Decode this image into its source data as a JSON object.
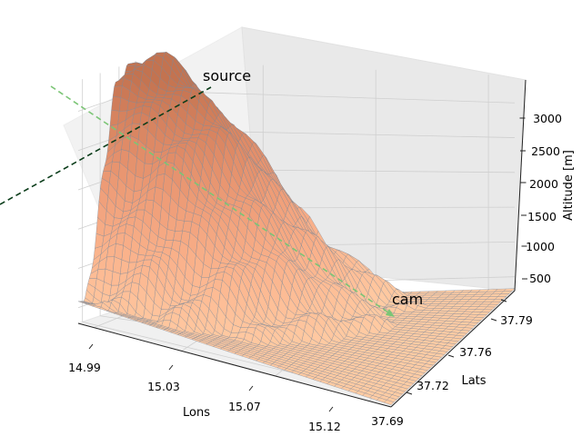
{
  "chart_data": {
    "type": "surface3d",
    "title": "",
    "xlabel": "Lons",
    "ylabel": "Lats",
    "zlabel": "Altitude [m]",
    "x_ticks": [
      "14.99",
      "15.03",
      "15.07",
      "15.12"
    ],
    "y_ticks": [
      "37.69",
      "37.72",
      "37.76",
      "37.79"
    ],
    "z_ticks": [
      "500",
      "1000",
      "1500",
      "2000",
      "2500",
      "3000"
    ],
    "xlim": [
      14.98,
      15.13
    ],
    "ylim": [
      37.68,
      37.8
    ],
    "zlim": [
      300,
      3330
    ],
    "grid": true,
    "surface": {
      "colormap": "copper-like",
      "edge_color": "#7f8a96",
      "peak": {
        "lon": 14.995,
        "lat": 37.75,
        "altitude": 3300
      }
    },
    "annotations": [
      {
        "text": "source",
        "lon": 14.99,
        "lat": 37.76,
        "altitude": 3300
      },
      {
        "text": "cam",
        "lon": 15.1,
        "lat": 37.78,
        "altitude": 300
      }
    ],
    "lines": [
      {
        "name": "source-ray",
        "style": "dashed",
        "color": "#0b3d1a"
      },
      {
        "name": "cam-ray",
        "style": "dashed",
        "color": "#7cc576"
      }
    ]
  }
}
